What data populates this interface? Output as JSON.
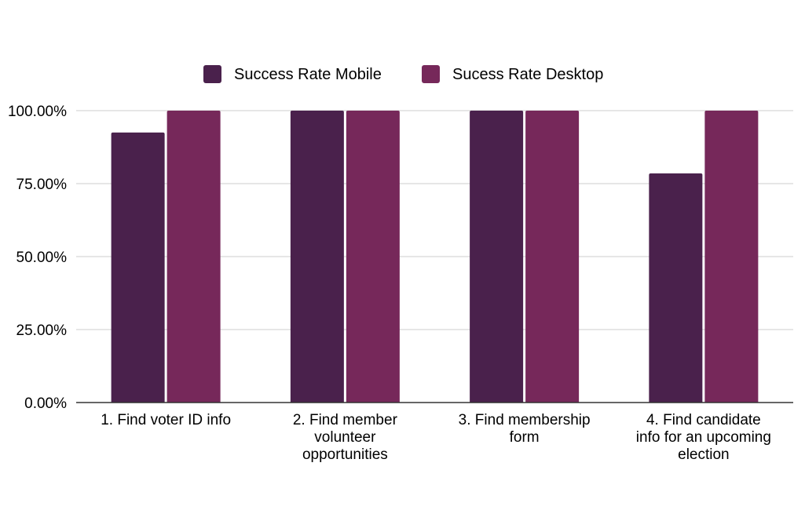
{
  "chart_data": {
    "type": "bar",
    "title": "",
    "xlabel": "",
    "ylabel": "",
    "categories": [
      [
        "1. Find voter ID info"
      ],
      [
        "2. Find member",
        "volunteer",
        "opportunities"
      ],
      [
        "3. Find membership",
        "form"
      ],
      [
        "4. Find candidate",
        "info for an upcoming",
        "election"
      ]
    ],
    "series": [
      {
        "name": "Success Rate Mobile",
        "values": [
          0.925,
          1.0,
          1.0,
          0.785
        ],
        "color": "#4a214c"
      },
      {
        "name": "Sucess Rate Desktop",
        "values": [
          1.0,
          1.0,
          1.0,
          1.0
        ],
        "color": "#76285a"
      }
    ],
    "ylim": [
      0,
      1
    ],
    "yticks": [
      {
        "value": 0,
        "label": "0.00%"
      },
      {
        "value": 0.25,
        "label": "25.00%"
      },
      {
        "value": 0.5,
        "label": "50.00%"
      },
      {
        "value": 0.75,
        "label": "75.00%"
      },
      {
        "value": 1.0,
        "label": "100.00%"
      }
    ],
    "grid": true,
    "legend_position": "top"
  }
}
